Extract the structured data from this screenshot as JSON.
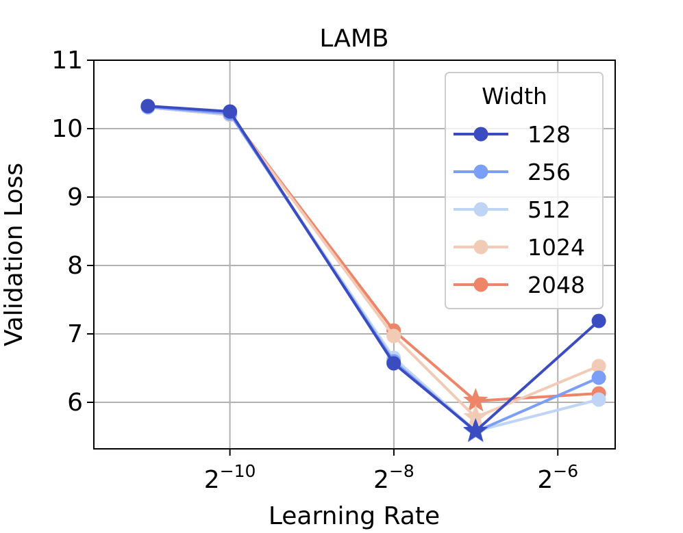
{
  "chart_data": {
    "type": "line",
    "title": "LAMB",
    "xlabel": "Learning Rate",
    "ylabel": "Validation Loss",
    "x_scale": "log2",
    "x": [
      0.000488,
      0.000977,
      0.0039,
      0.0078,
      0.0221
    ],
    "xticks": [
      {
        "value": 0.0009765625,
        "base": "2",
        "exp": "−10"
      },
      {
        "value": 0.00390625,
        "base": "2",
        "exp": "−8"
      },
      {
        "value": 0.015625,
        "base": "2",
        "exp": "−6"
      }
    ],
    "ylim": [
      5.32,
      11.0
    ],
    "yticks": [
      6,
      7,
      8,
      9,
      10,
      11
    ],
    "grid": true,
    "legend": {
      "title": "Width",
      "placement": "top-right"
    },
    "series": [
      {
        "name": "128",
        "color": "#3b4cc0",
        "values": [
          10.33,
          10.25,
          6.57,
          5.58,
          7.19
        ],
        "best_index": 3
      },
      {
        "name": "256",
        "color": "#7b9ff9",
        "values": [
          10.32,
          10.22,
          6.6,
          5.57,
          6.36
        ],
        "best_index": 3
      },
      {
        "name": "512",
        "color": "#c0d4f5",
        "values": [
          10.31,
          10.21,
          6.65,
          5.58,
          6.04
        ],
        "best_index": 3
      },
      {
        "name": "1024",
        "color": "#f2cbb7",
        "values": [
          10.31,
          10.2,
          6.97,
          5.78,
          6.53
        ],
        "best_index": 3
      },
      {
        "name": "2048",
        "color": "#ee8468",
        "values": [
          10.31,
          10.2,
          7.05,
          6.02,
          6.13
        ],
        "best_index": 3
      }
    ]
  }
}
